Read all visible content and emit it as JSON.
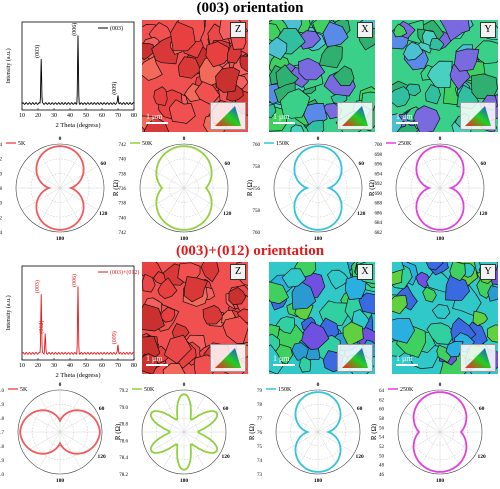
{
  "titles": {
    "top": "(003) orientation",
    "bottom": "(003)+(012) orientation"
  },
  "colors": {
    "bottom_title": "#e31a1c",
    "5K": "#f05a5a",
    "50K": "#8fd13f",
    "150K": "#33c3e0",
    "250K": "#e040e0"
  },
  "xrd": [
    {
      "legend": "(003)",
      "ylabel": "Intensity (a.u.)",
      "xlabel": "2 Theta (degress)",
      "xticks": [
        "10",
        "20",
        "30",
        "40",
        "50",
        "60",
        "70",
        "80"
      ],
      "peaks": [
        {
          "label": "(003)",
          "x": 22,
          "h": 0.55
        },
        {
          "label": "(006)",
          "x": 45,
          "h": 0.82
        },
        {
          "label": "(009)",
          "x": 70,
          "h": 0.1
        }
      ]
    },
    {
      "legend": "(003)+(012)",
      "ylabel": "Intensity (a.u.)",
      "xlabel": "2 Theta (degress)",
      "xticks": [
        "10",
        "20",
        "30",
        "40",
        "50",
        "60",
        "70",
        "80"
      ],
      "peaks": [
        {
          "label": "(003)",
          "x": 22,
          "h": 0.68
        },
        {
          "label": "(012)",
          "x": 24.5,
          "h": 0.22
        },
        {
          "label": "(006)",
          "x": 45,
          "h": 0.75
        },
        {
          "label": "(009)",
          "x": 70,
          "h": 0.1
        }
      ]
    }
  ],
  "ebsd": {
    "scale_label": "1 μm",
    "top_letters": [
      "Z",
      "X",
      "Y"
    ],
    "bottom_letters": [
      "Z",
      "X",
      "Y"
    ],
    "pole_labels": [
      "001",
      "100",
      "110"
    ]
  },
  "polar_common": {
    "ylabel": "R (Ω)",
    "angle_labels": [
      "0",
      "60",
      "120",
      "180",
      "240",
      "300"
    ]
  },
  "polar_top": [
    {
      "temp": "5K",
      "ticks": [
        "724",
        "722",
        "720",
        "718",
        "720",
        "722",
        "724"
      ]
    },
    {
      "temp": "50K",
      "ticks": [
        "742",
        "740",
        "738",
        "736",
        "738",
        "740",
        "742"
      ]
    },
    {
      "temp": "150K",
      "ticks": [
        "760",
        "758",
        "756",
        "758",
        "760"
      ]
    },
    {
      "temp": "250K",
      "ticks": [
        "700",
        "698",
        "696",
        "694",
        "692",
        "690",
        "688",
        "686",
        "684",
        "682"
      ]
    }
  ],
  "polar_bottom": [
    {
      "temp": "5K",
      "ticks": [
        "79.0",
        "78.9",
        "78.8",
        "78.7",
        "78.8",
        "78.9",
        "79.0"
      ]
    },
    {
      "temp": "50K",
      "ticks": [
        "79.2",
        "79.0",
        "78.8",
        "78.6",
        "78.4",
        "78.2"
      ]
    },
    {
      "temp": "150K",
      "ticks": [
        "79",
        "78",
        "77",
        "76",
        "75",
        "74",
        "73"
      ]
    },
    {
      "temp": "250K",
      "ticks": [
        "64",
        "62",
        "60",
        "58",
        "56",
        "54",
        "52",
        "50",
        "48",
        "46"
      ]
    }
  ]
}
